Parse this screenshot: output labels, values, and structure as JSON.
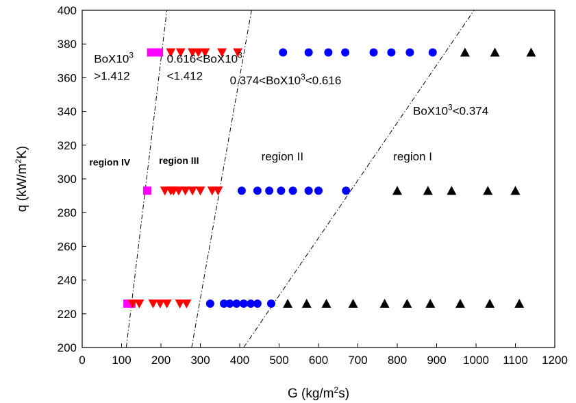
{
  "chart_data": {
    "type": "scatter",
    "xlabel": "G (kg/m²s)",
    "ylabel": "q (kW/m²K)",
    "xlim": [
      0,
      1200
    ],
    "ylim": [
      200,
      400
    ],
    "x_ticks": [
      0,
      100,
      200,
      300,
      400,
      500,
      600,
      700,
      800,
      900,
      1000,
      1100,
      1200
    ],
    "y_ticks": [
      200,
      220,
      240,
      260,
      280,
      300,
      320,
      340,
      360,
      380,
      400
    ],
    "grid": false,
    "legend": "none",
    "series": [
      {
        "marker": "square",
        "color": "#ff00ff",
        "points": [
          [
            175,
            375
          ],
          [
            195,
            375
          ],
          [
            165,
            293
          ],
          [
            115,
            226
          ],
          [
            125,
            226
          ]
        ]
      },
      {
        "marker": "triangle-down",
        "color": "#ff0000",
        "points": [
          [
            225,
            375
          ],
          [
            250,
            375
          ],
          [
            280,
            375
          ],
          [
            295,
            375
          ],
          [
            312,
            375
          ],
          [
            355,
            375
          ],
          [
            395,
            375
          ],
          [
            210,
            293
          ],
          [
            225,
            293
          ],
          [
            232,
            293
          ],
          [
            245,
            293
          ],
          [
            262,
            293
          ],
          [
            280,
            293
          ],
          [
            300,
            293
          ],
          [
            330,
            293
          ],
          [
            345,
            293
          ],
          [
            128,
            226
          ],
          [
            145,
            226
          ],
          [
            180,
            226
          ],
          [
            198,
            226
          ],
          [
            215,
            226
          ],
          [
            248,
            226
          ],
          [
            265,
            226
          ]
        ]
      },
      {
        "marker": "circle",
        "color": "#0000ff",
        "points": [
          [
            510,
            375
          ],
          [
            575,
            375
          ],
          [
            625,
            375
          ],
          [
            668,
            375
          ],
          [
            740,
            375
          ],
          [
            785,
            375
          ],
          [
            832,
            375
          ],
          [
            890,
            375
          ],
          [
            405,
            293
          ],
          [
            445,
            293
          ],
          [
            475,
            293
          ],
          [
            505,
            293
          ],
          [
            535,
            293
          ],
          [
            575,
            293
          ],
          [
            600,
            293
          ],
          [
            670,
            293
          ],
          [
            325,
            226
          ],
          [
            360,
            226
          ],
          [
            375,
            226
          ],
          [
            392,
            226
          ],
          [
            410,
            226
          ],
          [
            428,
            226
          ],
          [
            445,
            226
          ],
          [
            480,
            226
          ]
        ]
      },
      {
        "marker": "triangle-up",
        "color": "#000000",
        "points": [
          [
            972,
            375
          ],
          [
            1048,
            375
          ],
          [
            1140,
            375
          ],
          [
            800,
            293
          ],
          [
            878,
            293
          ],
          [
            938,
            293
          ],
          [
            1030,
            293
          ],
          [
            1100,
            293
          ],
          [
            522,
            226
          ],
          [
            570,
            226
          ],
          [
            620,
            226
          ],
          [
            688,
            226
          ],
          [
            768,
            226
          ],
          [
            825,
            226
          ],
          [
            884,
            226
          ],
          [
            960,
            226
          ],
          [
            1035,
            226
          ],
          [
            1110,
            226
          ]
        ]
      }
    ],
    "boundary_lines": [
      {
        "from": [
          112,
          200
        ],
        "to": [
          215,
          400
        ]
      },
      {
        "from": [
          278,
          200
        ],
        "to": [
          430,
          400
        ]
      },
      {
        "from": [
          410,
          200
        ],
        "to": [
          995,
          400
        ]
      }
    ],
    "annotations": [
      {
        "id": "bo-gt",
        "lines": [
          "BoX10³",
          ">1.412"
        ],
        "at": [
          30,
          369
        ]
      },
      {
        "id": "bo-mid1",
        "lines": [
          "0.616<BoX10³",
          "<1.412"
        ],
        "at": [
          215,
          369
        ]
      },
      {
        "id": "bo-mid2",
        "lines": [
          "0.374<BoX10³<0.616"
        ],
        "at": [
          375,
          356
        ]
      },
      {
        "id": "bo-lt",
        "lines": [
          "BoX10³<0.374"
        ],
        "at": [
          840,
          338
        ]
      },
      {
        "id": "region-iv",
        "lines": [
          "region IV"
        ],
        "at": [
          18,
          308
        ],
        "style": "bold"
      },
      {
        "id": "region-iii",
        "lines": [
          "region III"
        ],
        "at": [
          195,
          309
        ],
        "style": "bold"
      },
      {
        "id": "region-ii",
        "lines": [
          "region II"
        ],
        "at": [
          455,
          311
        ]
      },
      {
        "id": "region-i",
        "lines": [
          "region I"
        ],
        "at": [
          790,
          311
        ]
      }
    ]
  }
}
